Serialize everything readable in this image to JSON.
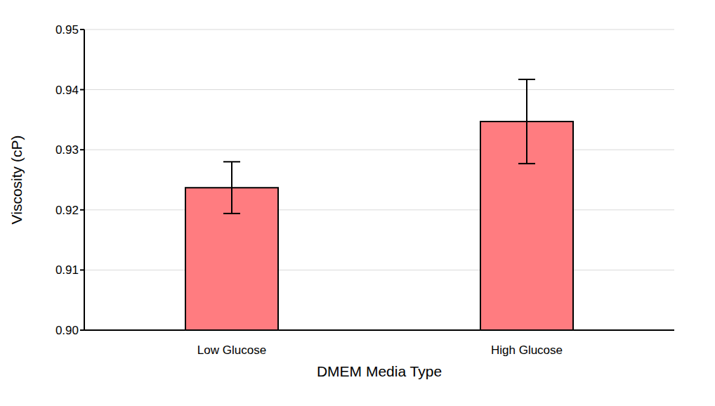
{
  "chart_data": {
    "type": "bar",
    "x_label": "DMEM Media Type",
    "y_label": "Viscosity (cP)",
    "categories": [
      "Low Glucose",
      "High Glucose"
    ],
    "values": [
      0.9237,
      0.9347
    ],
    "errors": [
      0.0043,
      0.007
    ],
    "color": "#ff7c80",
    "ylim": [
      0.9,
      0.95
    ],
    "yticks": [
      {
        "value": 0.9,
        "label": "0.90"
      },
      0.91,
      0.92,
      0.93,
      0.94,
      0.95
    ],
    "grid": true
  }
}
